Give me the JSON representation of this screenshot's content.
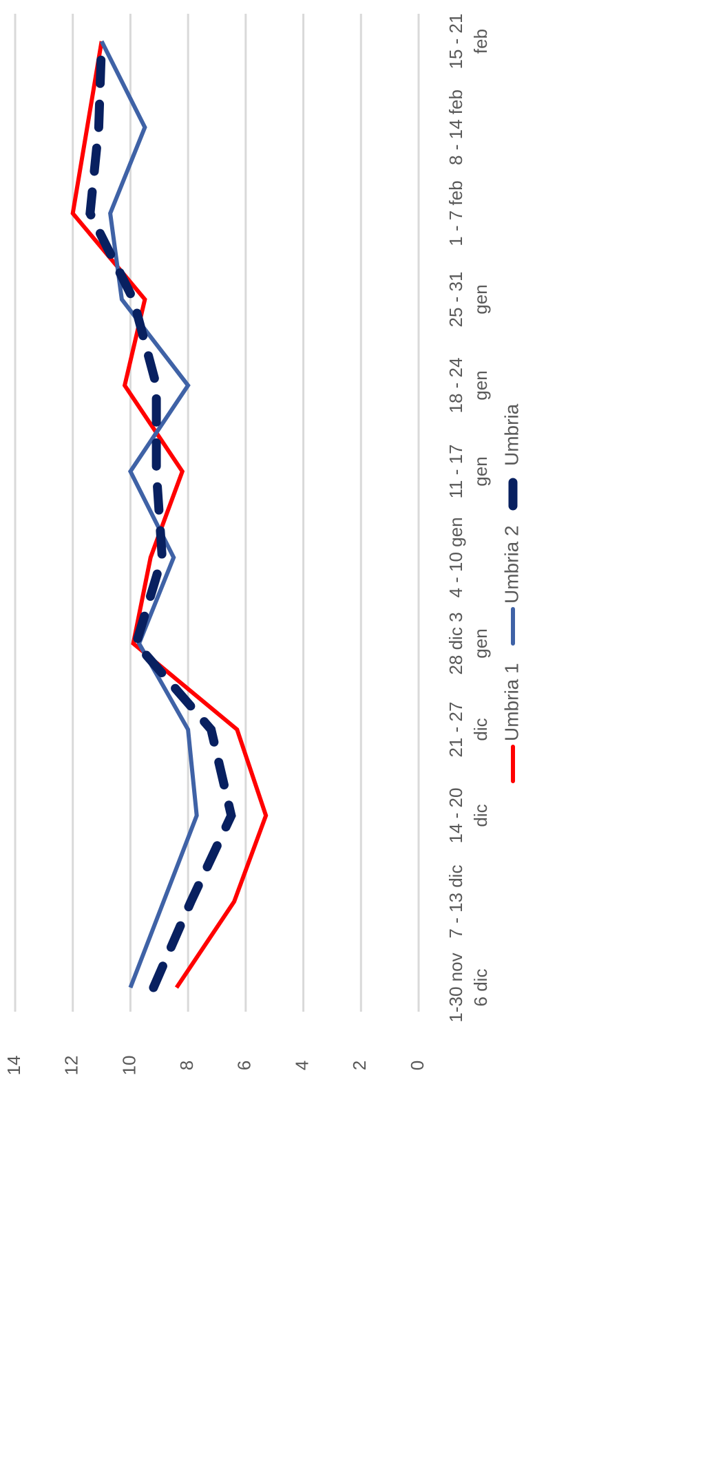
{
  "chart_data": {
    "type": "line",
    "orientation": "rotated-90-clockwise",
    "title": "",
    "xlabel": "",
    "ylabel": "",
    "categories": [
      [
        "1-30 nov",
        "6 dic"
      ],
      [
        "7 - 13 dic"
      ],
      [
        "14 - 20",
        "dic"
      ],
      [
        "21 - 27",
        "dic"
      ],
      [
        "28 dic 3",
        "gen"
      ],
      [
        "4 - 10 gen"
      ],
      [
        "11 - 17",
        "gen"
      ],
      [
        "18 - 24",
        "gen"
      ],
      [
        "25 - 31",
        "gen"
      ],
      [
        "1 - 7 feb"
      ],
      [
        "8 - 14 feb"
      ],
      [
        "15 - 21",
        "feb"
      ]
    ],
    "ylim": [
      0,
      14
    ],
    "yticks": [
      0,
      2,
      4,
      6,
      8,
      10,
      12,
      14
    ],
    "grid": true,
    "legend_position": "bottom",
    "series": [
      {
        "name": "Umbria 1",
        "color": "#ff0000",
        "style": "solid",
        "values": [
          8.4,
          6.4,
          5.3,
          6.3,
          9.9,
          9.3,
          8.2,
          10.2,
          9.5,
          12.0,
          null,
          11.0
        ]
      },
      {
        "name": "Umbria 2",
        "color": "#3f62a6",
        "style": "solid",
        "values": [
          10.0,
          null,
          7.7,
          8.0,
          9.7,
          8.5,
          10.0,
          8.0,
          10.3,
          10.7,
          9.5,
          11.0
        ]
      },
      {
        "name": "Umbria",
        "color": "#082060",
        "style": "dashed",
        "values": [
          9.2,
          7.9,
          6.5,
          7.2,
          9.8,
          8.9,
          9.1,
          9.1,
          9.9,
          11.4,
          11.1,
          11.0
        ]
      }
    ]
  }
}
